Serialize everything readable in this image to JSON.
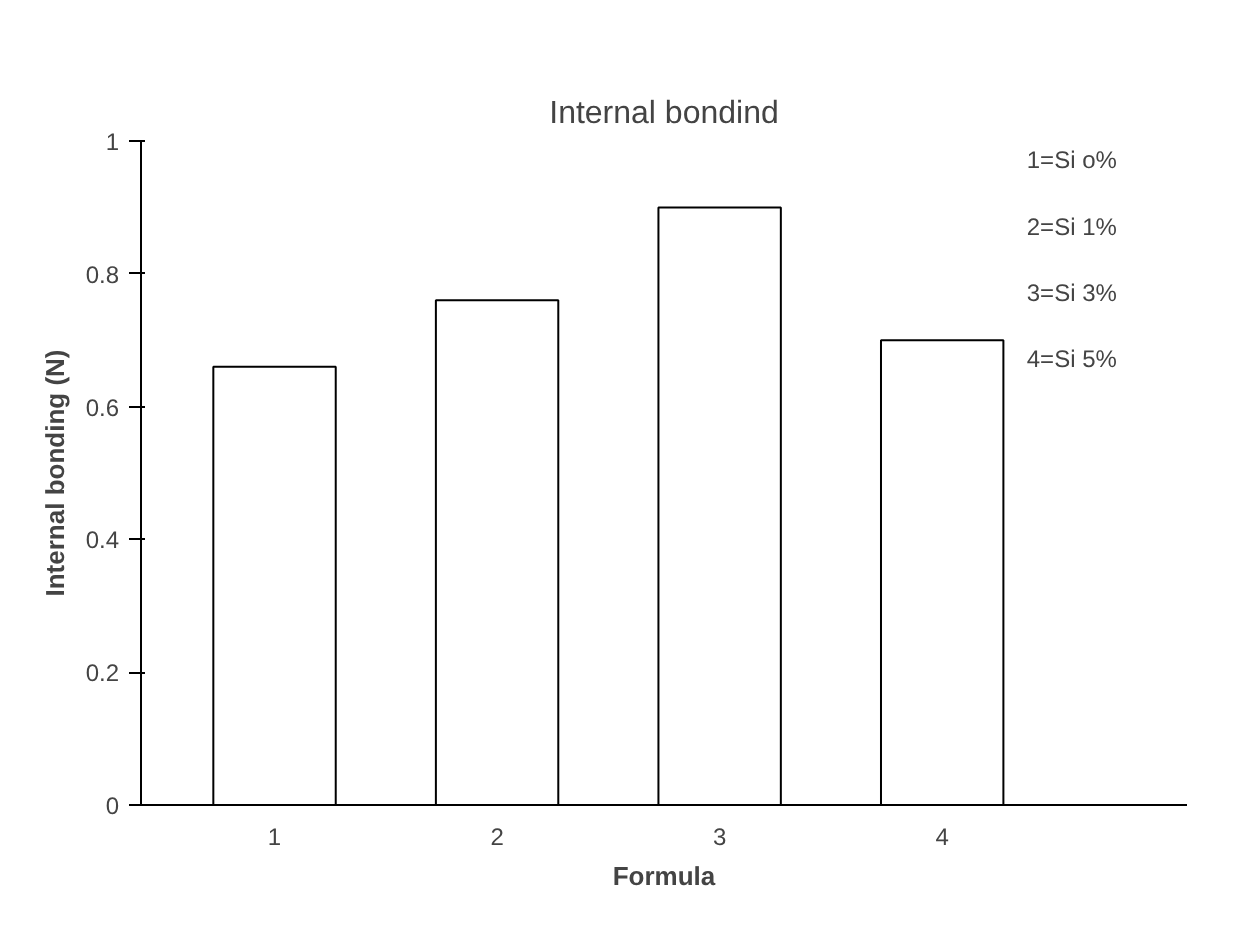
{
  "chart_data": {
    "type": "bar",
    "title": "Internal bondind",
    "xlabel": "Formula",
    "ylabel": "Internal bonding (N)",
    "categories": [
      "1",
      "2",
      "3",
      "4"
    ],
    "values": [
      0.66,
      0.76,
      0.9,
      0.7
    ],
    "color": "#ffffff",
    "ylim": [
      0,
      1
    ],
    "yticks": [
      0,
      0.2,
      0.4,
      0.6,
      0.8,
      1
    ],
    "grid": false,
    "annotations": [
      "1=Si o%",
      "2=Si 1%",
      "3=Si 3%",
      "4=Si 5%"
    ]
  }
}
